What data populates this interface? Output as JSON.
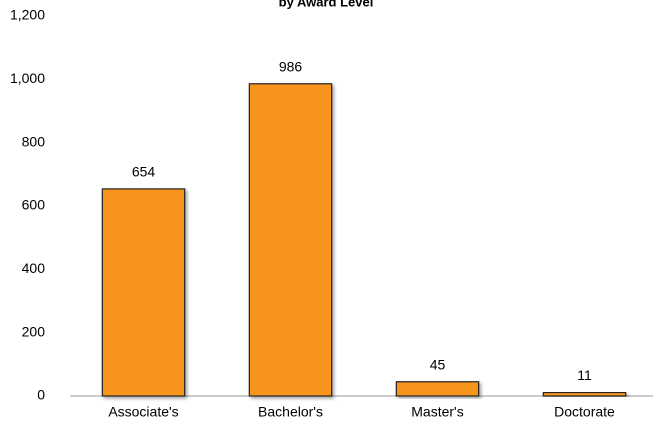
{
  "chart_data": {
    "type": "bar",
    "title": "by Award Level",
    "categories": [
      "Associate's",
      "Bachelor's",
      "Master's",
      "Doctorate"
    ],
    "values": [
      654,
      986,
      45,
      11
    ],
    "color": "#f7941d",
    "ylim": [
      0,
      1200
    ],
    "yticks": [
      0,
      200,
      400,
      600,
      800,
      {
        "value": 1000,
        "label": "1,000"
      },
      {
        "value": 1200,
        "label": "1,200"
      }
    ],
    "grid": false
  }
}
